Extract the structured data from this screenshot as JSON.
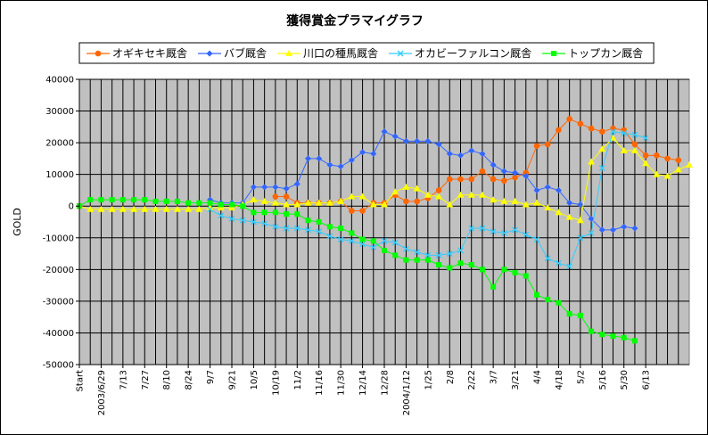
{
  "chart_data": {
    "type": "line",
    "title": "獲得賞金プラマイグラフ",
    "xlabel": "",
    "ylabel": "GOLD",
    "ylim": [
      -50000,
      40000
    ],
    "yticks": [
      40000,
      30000,
      20000,
      10000,
      0,
      -10000,
      -20000,
      -30000,
      -40000,
      -50000
    ],
    "grid": true,
    "legend": "top",
    "background": "#c0c0c0",
    "x_tick_labels": [
      "Start",
      "2003/6/29",
      "7/13",
      "7/27",
      "8/10",
      "8/24",
      "9/7",
      "9/21",
      "10/5",
      "10/19",
      "11/2",
      "11/16",
      "11/30",
      "12/14",
      "12/28",
      "2004/1/12",
      "1/25",
      "2/8",
      "2/22",
      "3/7",
      "3/21",
      "4/4",
      "4/18",
      "5/2",
      "5/16",
      "5/30",
      "6/13"
    ],
    "series": [
      {
        "name": "オギキセキ厩舎",
        "color": "#ff6600",
        "marker": "circle",
        "values": [
          0,
          null,
          null,
          null,
          null,
          null,
          null,
          null,
          null,
          null,
          null,
          null,
          null,
          null,
          null,
          null,
          null,
          null,
          3000,
          3000,
          1000,
          1000,
          1000,
          1000,
          1500,
          -1500,
          -1500,
          1000,
          1000,
          3500,
          1500,
          1500,
          2500,
          5000,
          8500,
          8500,
          8500,
          11000,
          8500,
          8000,
          9000,
          10500,
          19000,
          19500,
          24000,
          27500,
          26000,
          24500,
          23500,
          24500,
          24000,
          19500,
          16000,
          16000,
          15000,
          14500
        ]
      },
      {
        "name": "バブ厩舎",
        "color": "#3366ff",
        "marker": "diamond",
        "values": [
          0,
          null,
          null,
          null,
          null,
          null,
          null,
          null,
          null,
          null,
          null,
          null,
          2000,
          1000,
          1000,
          1000,
          6000,
          6000,
          6000,
          5500,
          7000,
          15000,
          15000,
          13000,
          12500,
          14500,
          17000,
          16500,
          23500,
          22000,
          20500,
          20500,
          20500,
          19500,
          16500,
          16000,
          17500,
          16500,
          13000,
          11000,
          10500,
          9500,
          5000,
          6000,
          5000,
          1000,
          500,
          -4000,
          -7500,
          -7500,
          -6500,
          -7000
        ]
      },
      {
        "name": "川口の種馬厩舎",
        "color": "#ffff00",
        "marker": "triangle",
        "values": [
          0,
          -1000,
          -1000,
          -1000,
          -1000,
          -1000,
          -1000,
          -1000,
          -1000,
          -1000,
          -1000,
          -1000,
          -500,
          -500,
          -500,
          500,
          2000,
          1500,
          1000,
          500,
          500,
          1000,
          1000,
          1000,
          1500,
          3000,
          3000,
          500,
          500,
          4500,
          6000,
          5500,
          3500,
          3000,
          500,
          3500,
          3500,
          3500,
          2000,
          1500,
          1500,
          500,
          1000,
          -500,
          -2000,
          -3500,
          -4500,
          14000,
          18000,
          21500,
          17500,
          17500,
          13500,
          10000,
          9500,
          11500,
          13000
        ]
      },
      {
        "name": "オカビーファルコン厩舎",
        "color": "#33ccff",
        "marker": "x",
        "values": [
          0,
          null,
          null,
          null,
          null,
          null,
          null,
          null,
          null,
          null,
          null,
          null,
          -1000,
          -3000,
          -4000,
          -4500,
          -5000,
          -5500,
          -6500,
          -7000,
          -7000,
          -7500,
          -8000,
          -9500,
          -10500,
          -11000,
          -12000,
          -13000,
          -11000,
          -11500,
          -13500,
          -14500,
          -15500,
          -15500,
          -15000,
          -14000,
          -7000,
          -7000,
          -8000,
          -8500,
          -7500,
          -9000,
          -10500,
          -16500,
          -18000,
          -19000,
          -10000,
          -8500,
          12000,
          23500,
          23000,
          22500,
          21500
        ]
      },
      {
        "name": "トップカン厩舎",
        "color": "#00ff00",
        "marker": "square",
        "values": [
          0,
          2000,
          2000,
          2000,
          2000,
          2000,
          2000,
          1500,
          1500,
          1500,
          1000,
          1000,
          1000,
          500,
          500,
          0,
          -2000,
          -2000,
          -2000,
          -2500,
          -2500,
          -4500,
          -5000,
          -6500,
          -7000,
          -8500,
          -10500,
          -11000,
          -14000,
          -15500,
          -17000,
          -17000,
          -17000,
          -18500,
          -19500,
          -18000,
          -18500,
          -20000,
          -25500,
          -20000,
          -21000,
          -22000,
          -28000,
          -29500,
          -30500,
          -34000,
          -34500,
          -39500,
          -40500,
          -41000,
          -41500,
          -42500
        ]
      }
    ]
  }
}
